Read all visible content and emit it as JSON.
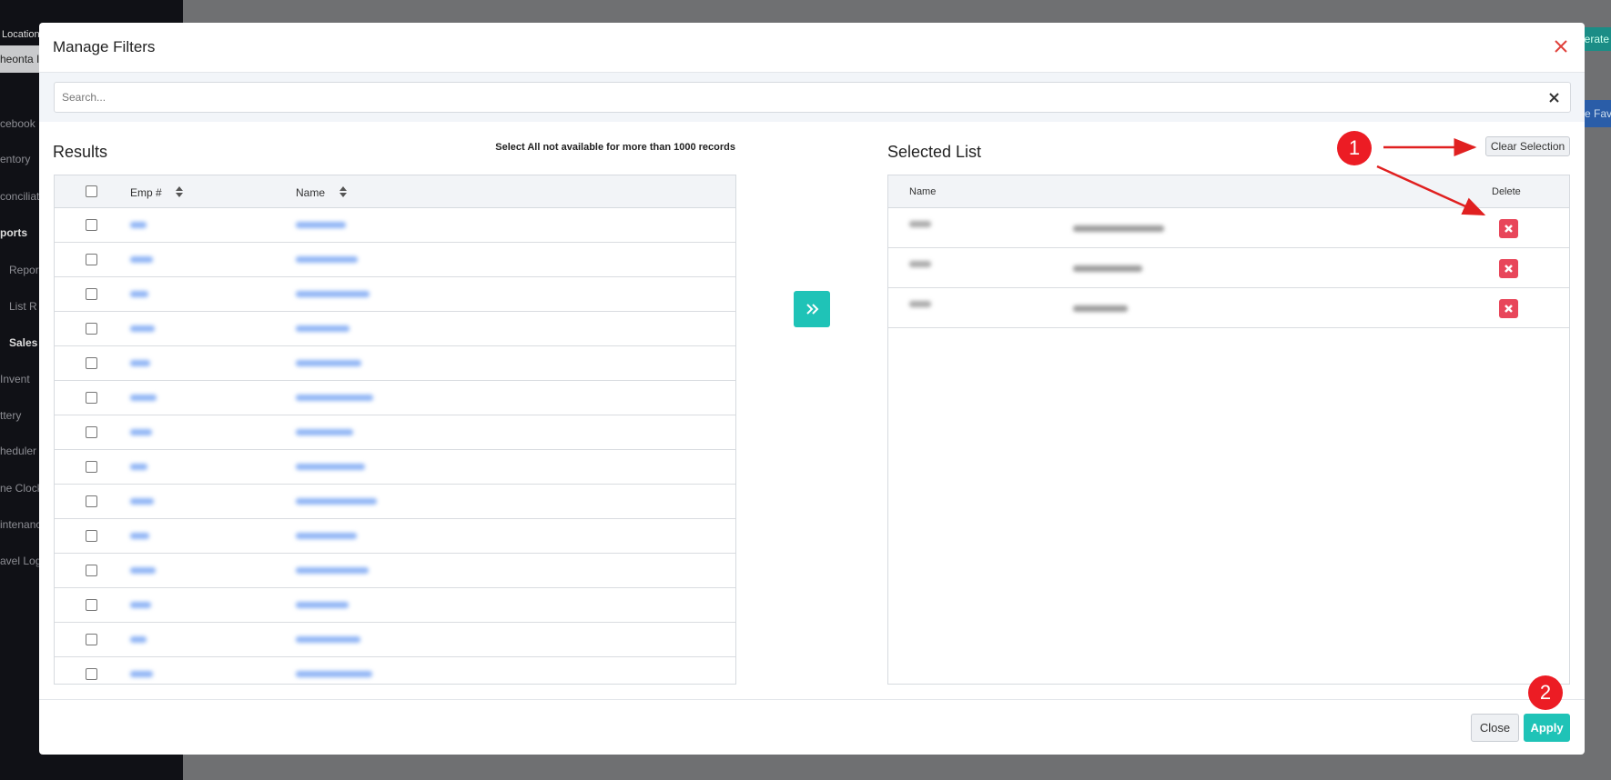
{
  "sidebar": {
    "location_label": "Location",
    "location_value": "heonta I",
    "items": [
      "cebook",
      "entory",
      "conciliati",
      "ports",
      "Repor",
      "List R",
      "Sales",
      "Invent",
      "ttery",
      "heduler",
      "ne Clock",
      "intenanc",
      "avel Log"
    ]
  },
  "background": {
    "button_1": "herate",
    "button_2": "e Fav"
  },
  "modal": {
    "title": "Manage Filters",
    "search_placeholder": "Search...",
    "results": {
      "title": "Results",
      "note": "Select All not available for more than 1000 records",
      "columns": [
        "Emp #",
        "Name"
      ],
      "row_count": 14
    },
    "selected": {
      "title": "Selected List",
      "clear_button": "Clear Selection",
      "columns": [
        "Name",
        "Delete"
      ],
      "row_count": 3
    },
    "footer": {
      "close": "Close",
      "apply": "Apply"
    }
  },
  "annotations": [
    "1",
    "2"
  ]
}
